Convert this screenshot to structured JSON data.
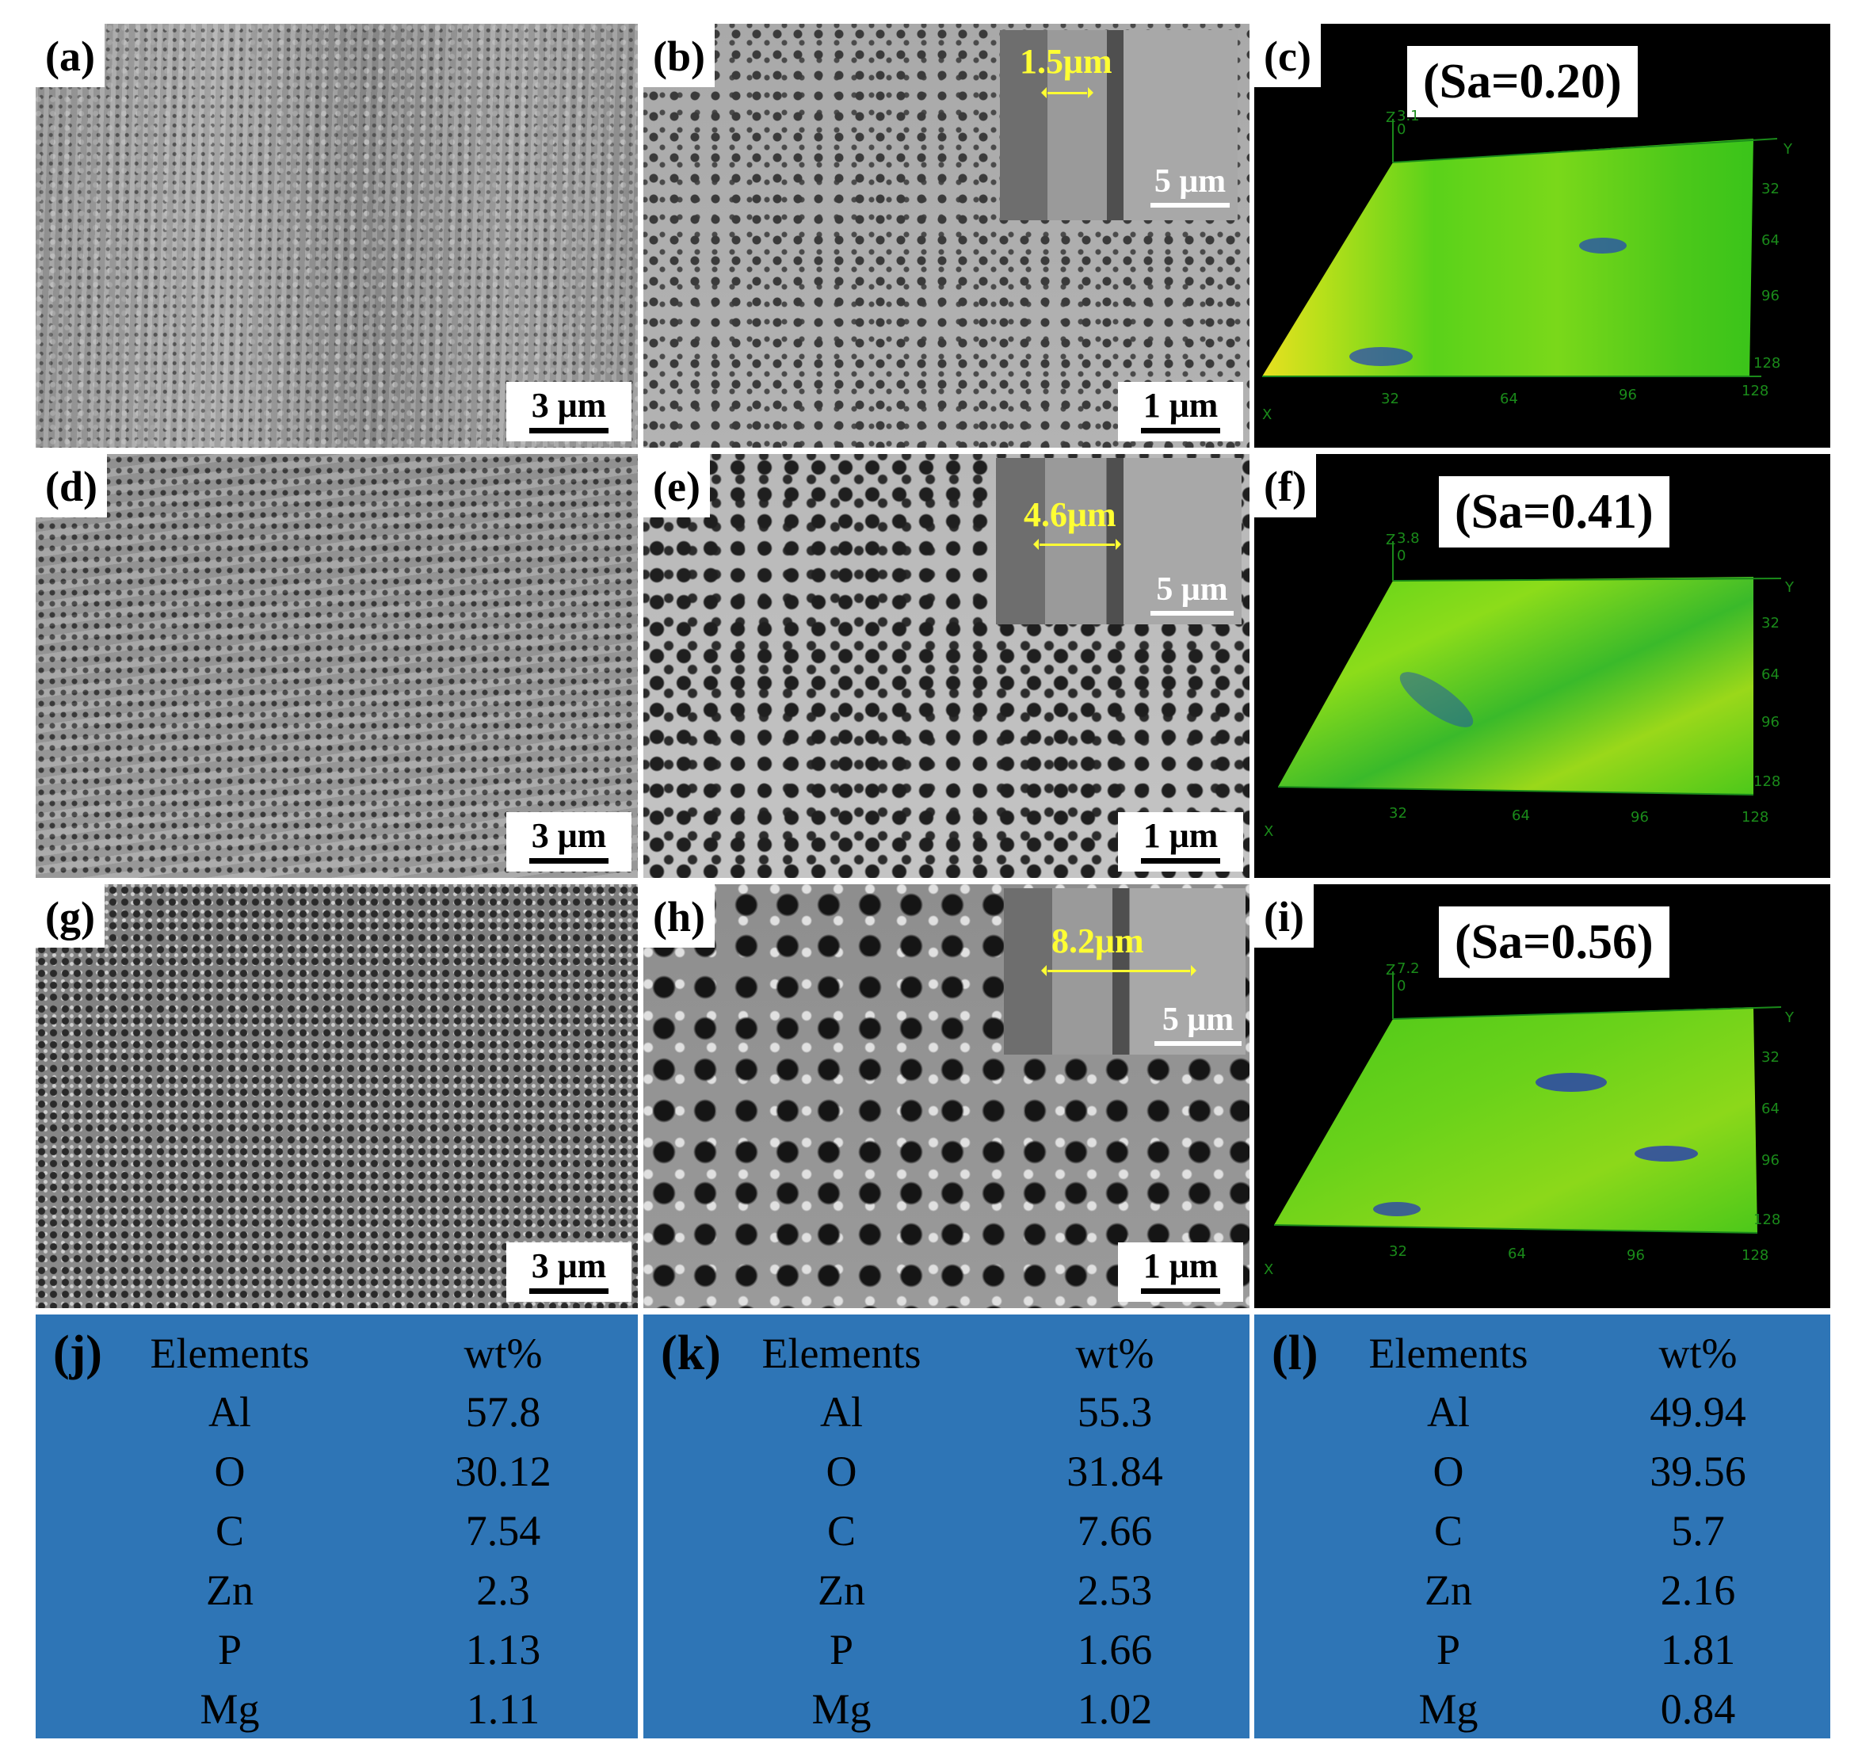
{
  "panels": {
    "a": {
      "label": "(a)",
      "scale": "3 μm"
    },
    "b": {
      "label": "(b)",
      "scale": "1 μm",
      "inset_thickness": "1.5μm",
      "inset_scale": "5 μm"
    },
    "c": {
      "label": "(c)",
      "sa": "(Sa=0.20)",
      "z_max": "3.1",
      "z_min": "0"
    },
    "d": {
      "label": "(d)",
      "scale": "3 μm"
    },
    "e": {
      "label": "(e)",
      "scale": "1 μm",
      "inset_thickness": "4.6μm",
      "inset_scale": "5 μm"
    },
    "f": {
      "label": "(f)",
      "sa": "(Sa=0.41)",
      "z_max": "3.8",
      "z_min": "0"
    },
    "g": {
      "label": "(g)",
      "scale": "3 μm"
    },
    "h": {
      "label": "(h)",
      "scale": "1 μm",
      "inset_thickness": "8.2μm",
      "inset_scale": "5 μm"
    },
    "i": {
      "label": "(i)",
      "sa": "(Sa=0.56)",
      "z_max": "7.2",
      "z_min": "0"
    }
  },
  "surface_axes": {
    "axis_x": "X",
    "axis_y": "Y",
    "axis_z": "Z",
    "x_ticks": [
      "32",
      "64",
      "96",
      "128"
    ],
    "y_ticks": [
      "32",
      "64",
      "96",
      "128"
    ]
  },
  "colors": {
    "table_bg": "#2e75b6",
    "annotation_yellow": "#ffff33",
    "surface_green": "#4cd21a"
  },
  "tables": {
    "j": {
      "label": "(j)",
      "header": [
        "Elements",
        "wt%"
      ],
      "rows": [
        [
          "Al",
          "57.8"
        ],
        [
          "O",
          "30.12"
        ],
        [
          "C",
          "7.54"
        ],
        [
          "Zn",
          "2.3"
        ],
        [
          "P",
          "1.13"
        ],
        [
          "Mg",
          "1.11"
        ]
      ]
    },
    "k": {
      "label": "(k)",
      "header": [
        "Elements",
        "wt%"
      ],
      "rows": [
        [
          "Al",
          "55.3"
        ],
        [
          "O",
          "31.84"
        ],
        [
          "C",
          "7.66"
        ],
        [
          "Zn",
          "2.53"
        ],
        [
          "P",
          "1.66"
        ],
        [
          "Mg",
          "1.02"
        ]
      ]
    },
    "l": {
      "label": "(l)",
      "header": [
        "Elements",
        "wt%"
      ],
      "rows": [
        [
          "Al",
          "49.94"
        ],
        [
          "O",
          "39.56"
        ],
        [
          "C",
          "5.7"
        ],
        [
          "Zn",
          "2.16"
        ],
        [
          "P",
          "1.81"
        ],
        [
          "Mg",
          "0.84"
        ]
      ]
    }
  }
}
